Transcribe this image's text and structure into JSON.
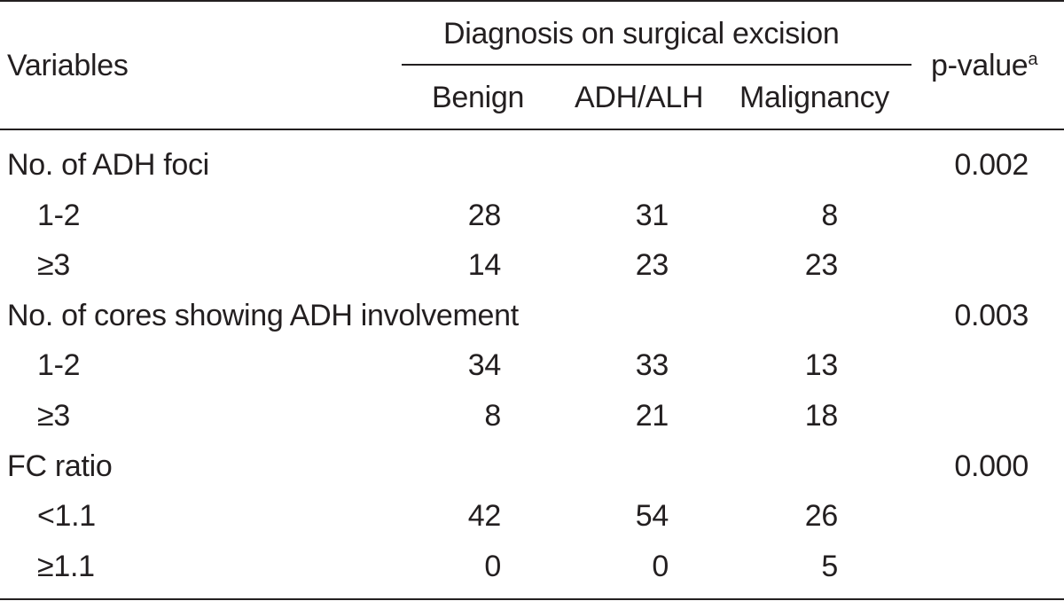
{
  "header": {
    "variables": "Variables",
    "group": "Diagnosis on surgical excision",
    "col_benign": "Benign",
    "col_adh": "ADH/ALH",
    "col_malignancy": "Malignancy",
    "pvalue": "p-value",
    "pvalue_sup": "a"
  },
  "rows": [
    {
      "label": "No. of ADH foci",
      "benign": "",
      "adh": "",
      "malignancy": "",
      "p": "0.002"
    },
    {
      "label": "1-2",
      "benign": "28",
      "adh": "31",
      "malignancy": "8",
      "p": ""
    },
    {
      "label": "≥3",
      "benign": "14",
      "adh": "23",
      "malignancy": "23",
      "p": ""
    },
    {
      "label": "No. of cores showing ADH involvement",
      "benign": "",
      "adh": "",
      "malignancy": "",
      "p": "0.003"
    },
    {
      "label": "1-2",
      "benign": "34",
      "adh": "33",
      "malignancy": "13",
      "p": ""
    },
    {
      "label": "≥3",
      "benign": "8",
      "adh": "21",
      "malignancy": "18",
      "p": ""
    },
    {
      "label": "FC ratio",
      "benign": "",
      "adh": "",
      "malignancy": "",
      "p": "0.000"
    },
    {
      "label": "<1.1",
      "benign": "42",
      "adh": "54",
      "malignancy": "26",
      "p": ""
    },
    {
      "label": "≥1.1",
      "benign": "0",
      "adh": "0",
      "malignancy": "5",
      "p": ""
    }
  ]
}
